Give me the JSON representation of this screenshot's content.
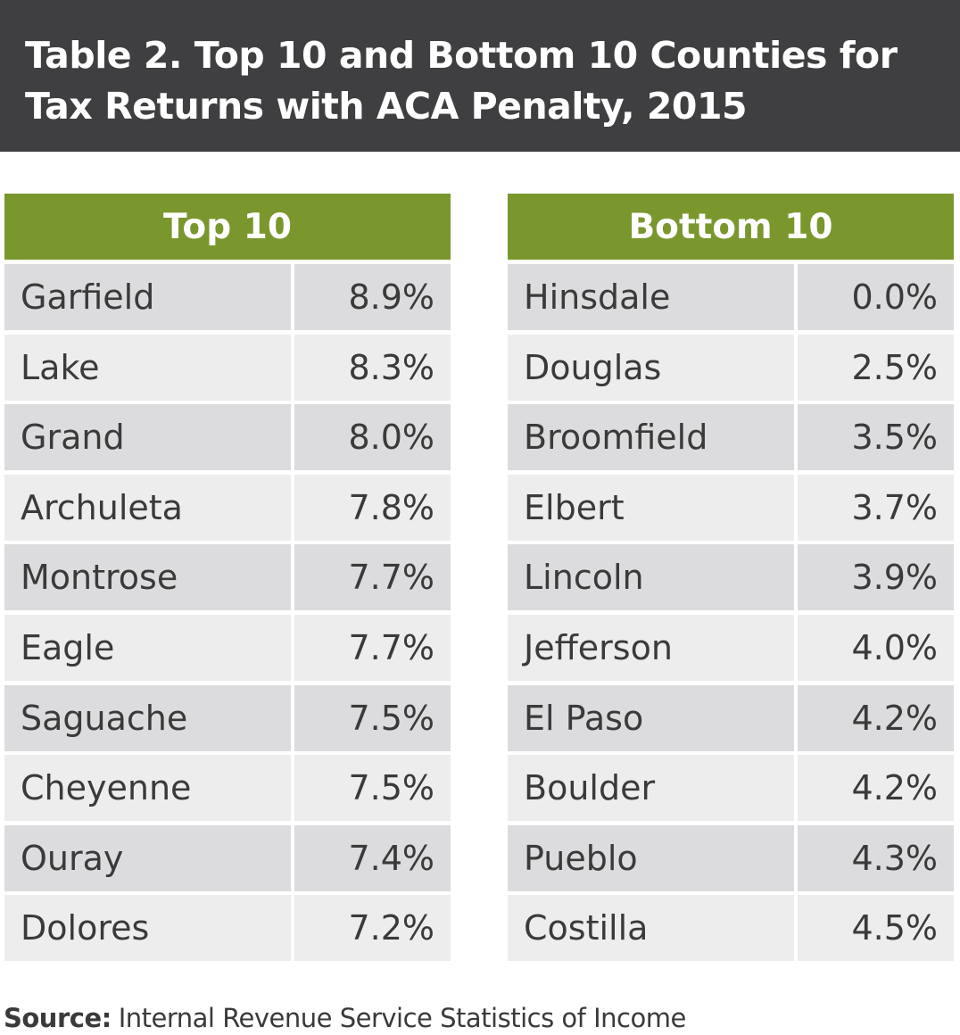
{
  "header": {
    "title_lines": [
      "Table 2. Top 10 and Bottom 10 Counties for",
      "Tax Returns with ACA Penalty, 2015"
    ]
  },
  "tables": [
    {
      "heading": "Top 10",
      "rows": [
        [
          "Garfield",
          "8.9%"
        ],
        [
          "Lake",
          "8.3%"
        ],
        [
          "Grand",
          "8.0%"
        ],
        [
          "Archuleta",
          "7.8%"
        ],
        [
          "Montrose",
          "7.7%"
        ],
        [
          "Eagle",
          "7.7%"
        ],
        [
          "Saguache",
          "7.5%"
        ],
        [
          "Cheyenne",
          "7.5%"
        ],
        [
          "Ouray",
          "7.4%"
        ],
        [
          "Dolores",
          "7.2%"
        ]
      ]
    },
    {
      "heading": "Bottom 10",
      "rows": [
        [
          "Hinsdale",
          "0.0%"
        ],
        [
          "Douglas",
          "2.5%"
        ],
        [
          "Broomfield",
          "3.5%"
        ],
        [
          "Elbert",
          "3.7%"
        ],
        [
          "Lincoln",
          "3.9%"
        ],
        [
          "Jefferson",
          "4.0%"
        ],
        [
          "El Paso",
          "4.2%"
        ],
        [
          "Boulder",
          "4.2%"
        ],
        [
          "Pueblo",
          "4.3%"
        ],
        [
          "Costilla",
          "4.5%"
        ]
      ]
    }
  ],
  "source": {
    "label": "Source:",
    "text": "Internal Revenue Service Statistics of Income"
  }
}
